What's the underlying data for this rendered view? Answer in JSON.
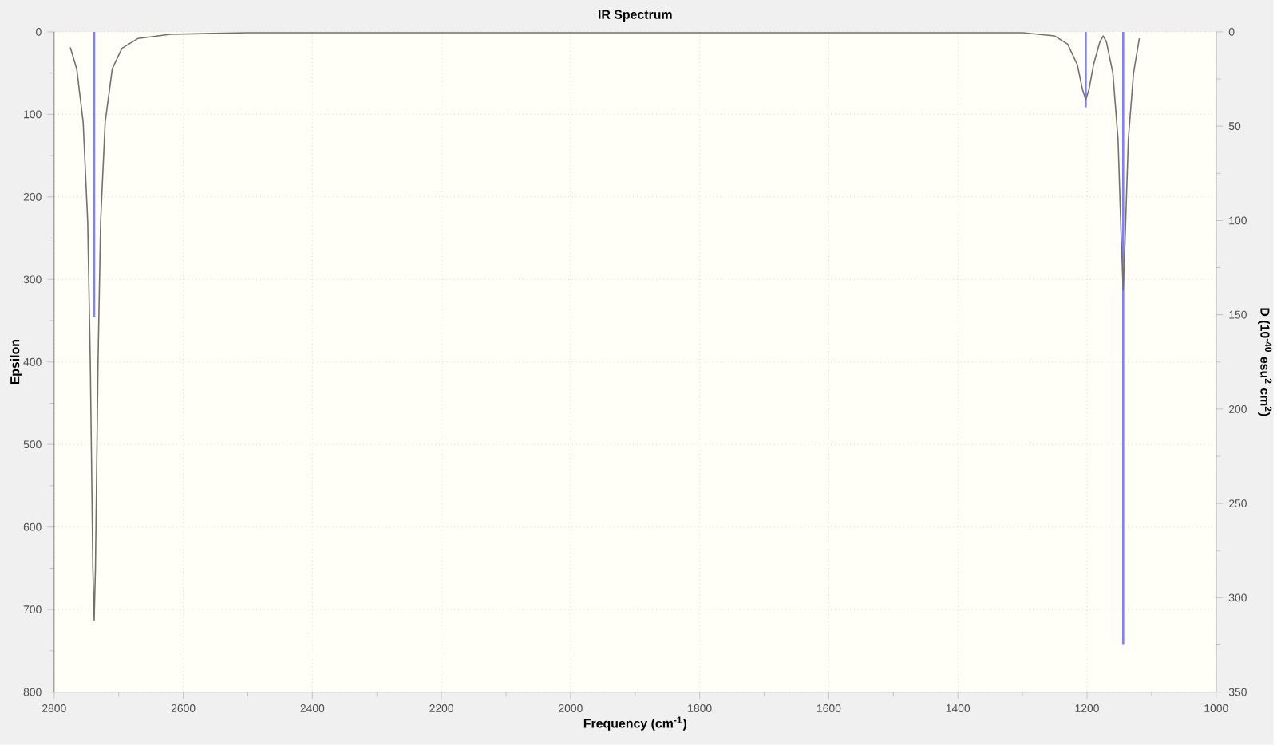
{
  "chart_data": {
    "type": "line",
    "title": "IR Spectrum",
    "xlabel": "Frequency (cm$^{-1}$)",
    "ylabel": "Epsilon",
    "y2label": "D (10$^{-40}$ esu$^{2}$ cm$^{2}$)",
    "xlim": [
      2800,
      1000
    ],
    "xticks": [
      2800,
      2600,
      2400,
      2200,
      2000,
      1800,
      1600,
      1400,
      1200,
      1000
    ],
    "ylim": [
      800,
      0
    ],
    "yticks": [
      0,
      100,
      200,
      300,
      400,
      500,
      600,
      700,
      800
    ],
    "y2lim": [
      350,
      0
    ],
    "y2ticks": [
      0,
      50,
      100,
      150,
      200,
      250,
      300,
      350
    ],
    "grid": true,
    "marker": "none",
    "line_style": "solid",
    "series": [
      {
        "color": "#707070",
        "x": [
          2775,
          2765,
          2755,
          2748,
          2744,
          2740,
          2738,
          2736,
          2732,
          2728,
          2721,
          2710,
          2695,
          2670,
          2620,
          2500,
          2200,
          1800,
          1300,
          1250,
          1230,
          1215,
          1207,
          1202,
          1197,
          1190,
          1180,
          1175,
          1170,
          1160,
          1152,
          1147,
          1144,
          1141,
          1136,
          1128,
          1119
        ],
        "values": [
          19,
          45,
          110,
          230,
          400,
          650,
          713,
          650,
          400,
          230,
          110,
          45,
          20,
          8,
          3,
          1,
          1,
          1,
          1,
          5,
          15,
          40,
          70,
          82,
          70,
          40,
          12,
          5,
          12,
          50,
          130,
          250,
          313,
          250,
          130,
          50,
          8
        ]
      },
      {
        "type": "bar",
        "axis": "y2",
        "color": "#8080ff",
        "x": [
          2738,
          1202,
          1144
        ],
        "values": [
          151,
          40,
          325
        ]
      }
    ]
  }
}
